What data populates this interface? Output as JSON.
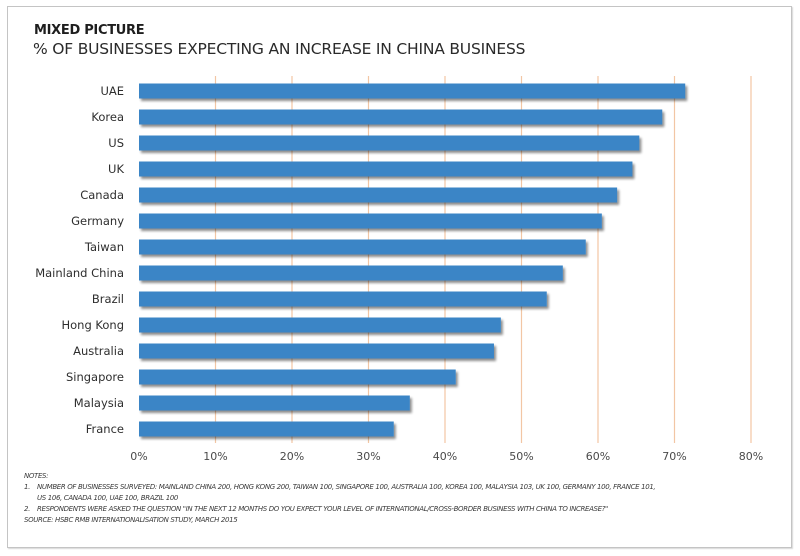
{
  "chart_data": {
    "type": "bar",
    "orientation": "horizontal",
    "title": "MIXED PICTURE",
    "subtitle": "% OF BUSINESSES EXPECTING AN INCREASE IN CHINA BUSINESS",
    "categories": [
      "UAE",
      "Korea",
      "US",
      "UK",
      "Canada",
      "Germany",
      "Taiwan",
      "Mainland China",
      "Brazil",
      "Hong Kong",
      "Australia",
      "Singapore",
      "Malaysia",
      "France"
    ],
    "values": [
      71.4,
      68.4,
      65.4,
      64.5,
      62.5,
      60.5,
      58.4,
      55.4,
      53.3,
      47.3,
      46.4,
      41.4,
      35.4,
      33.3
    ],
    "xlim": [
      0,
      80
    ],
    "xticks": [
      0,
      10,
      20,
      30,
      40,
      50,
      60,
      70,
      80
    ],
    "xtick_labels": [
      "0%",
      "10%",
      "20%",
      "30%",
      "40%",
      "50%",
      "60%",
      "70%",
      "80%"
    ],
    "xlabel": "",
    "ylabel": "",
    "grid": true,
    "colors": {
      "bar": "#3a85c6",
      "grid": "#f2c6a4"
    }
  },
  "notes": {
    "heading": "NOTES:",
    "items": [
      {
        "number": "1.",
        "line1": "NUMBER OF BUSINESSES SURVEYED: MAINLAND CHINA 200, HONG KONG 200, TAIWAN 100, SINGAPORE 100, AUSTRALIA 100, KOREA 100, MALAYSIA 103, UK 100, GERMANY 100, FRANCE 101,",
        "line2": "US 106, CANADA 100, UAE 100, BRAZIL 100"
      },
      {
        "number": "2.",
        "line1": "RESPONDENTS WERE ASKED THE QUESTION \"IN THE NEXT 12 MONTHS DO YOU EXPECT YOUR LEVEL OF INTERNATIONAL/CROSS-BORDER BUSINESS WITH CHINA TO INCREASE?\""
      }
    ],
    "source": "SOURCE: HSBC RMB INTERNATIONALISATION STUDY, MARCH 2015"
  }
}
